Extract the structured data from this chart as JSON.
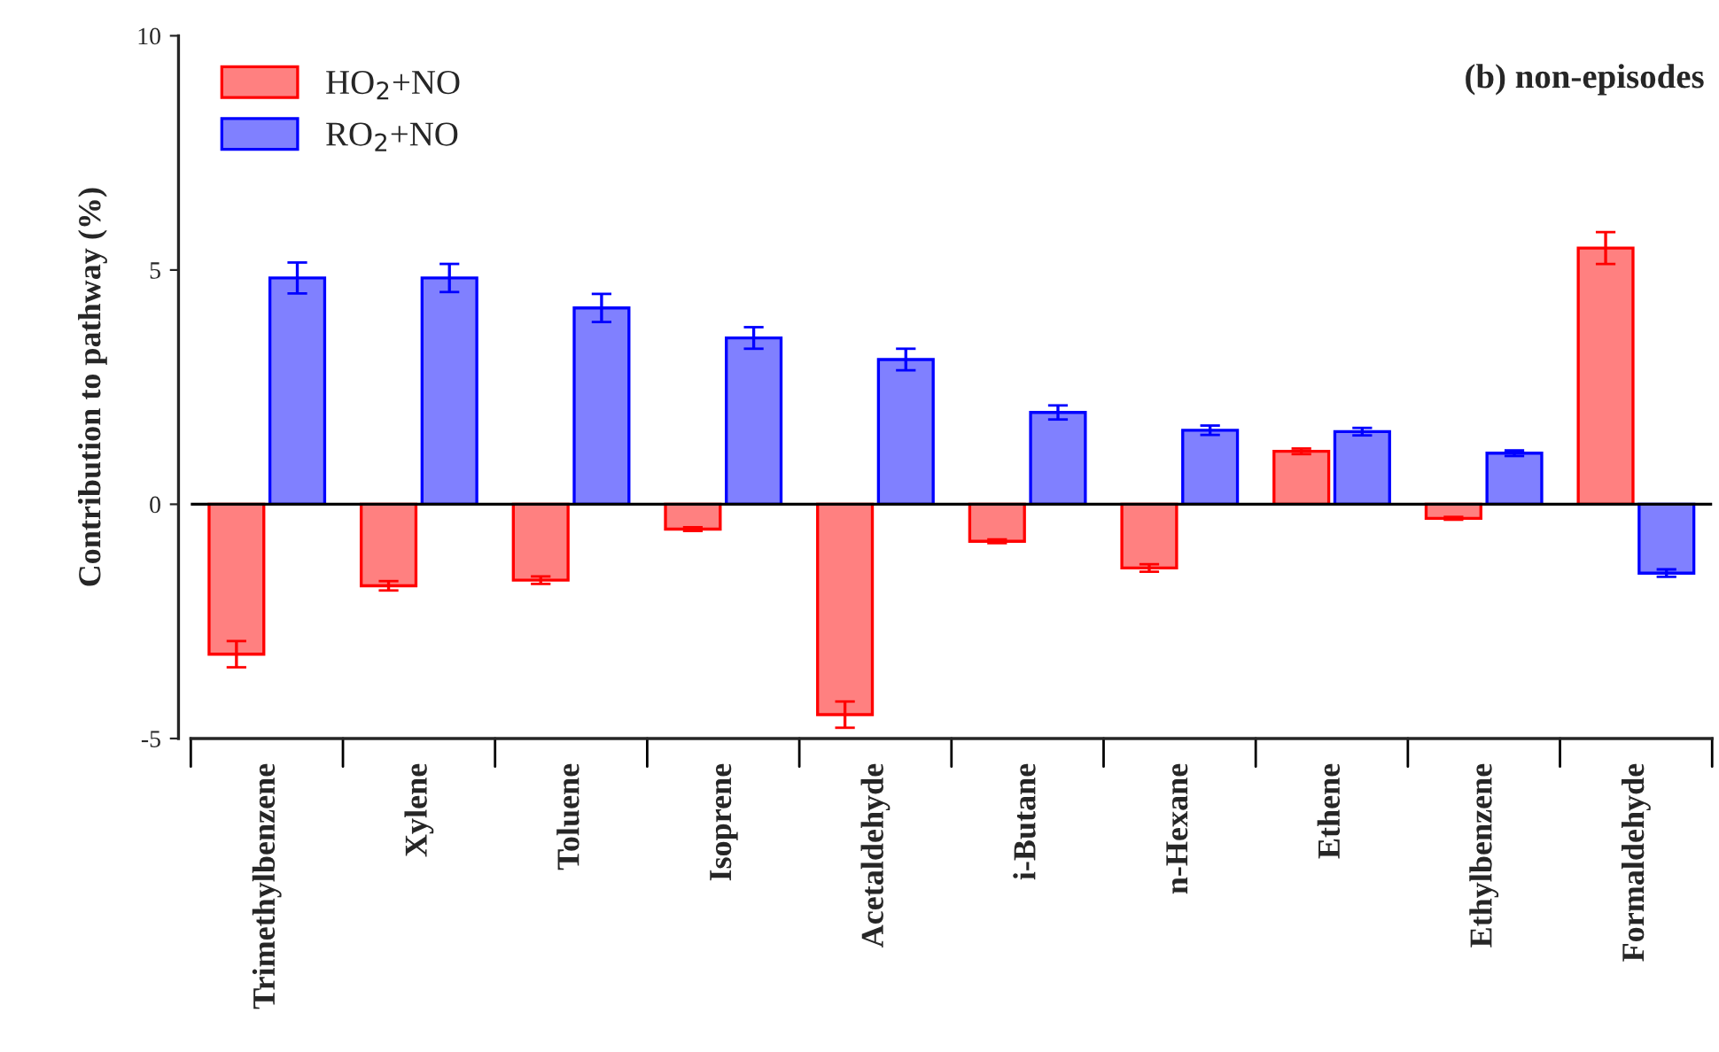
{
  "chart_data": {
    "type": "bar",
    "title": "(b) non-episodes",
    "ylabel": "Contribution to pathway (%)",
    "categories": [
      "Trimethylbenzene",
      "Xylene",
      "Toluene",
      "Isoprene",
      "Acetaldehyde",
      "i-Butane",
      "n-Hexane",
      "Ethene",
      "Ethylbenzene",
      "Formaldehyde"
    ],
    "series": [
      {
        "name": "HO$_{2}$+NO",
        "color": "#ff8080",
        "values": [
          -3.2,
          -1.74,
          -1.62,
          -0.53,
          -4.49,
          -0.79,
          -1.36,
          1.13,
          -0.3,
          5.47
        ],
        "errors": [
          0.28,
          0.1,
          0.08,
          0.04,
          0.28,
          0.04,
          0.08,
          0.06,
          0.03,
          0.34
        ]
      },
      {
        "name": "RO$_{2}$+NO",
        "color": "#8080ff",
        "values": [
          4.83,
          4.83,
          4.19,
          3.55,
          3.09,
          1.96,
          1.58,
          1.55,
          1.09,
          -1.47
        ],
        "errors": [
          0.33,
          0.3,
          0.3,
          0.23,
          0.23,
          0.15,
          0.1,
          0.08,
          0.06,
          0.08
        ]
      }
    ],
    "ylim": [
      -5,
      10
    ],
    "yticks": [
      -5,
      0,
      5,
      10
    ],
    "ref_lines": [
      {
        "axis": "y",
        "value": 0
      }
    ],
    "legend": "top left",
    "grid": false
  }
}
